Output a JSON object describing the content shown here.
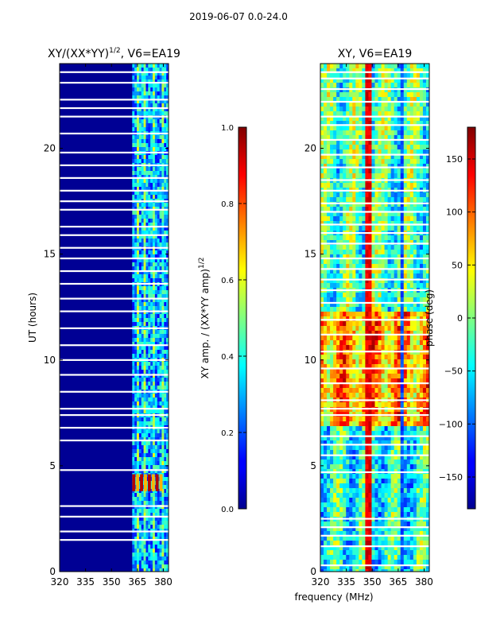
{
  "figure": {
    "suptitle": "2019-06-07 0.0-24.0",
    "xlabel_shared": "frequency (MHz)"
  },
  "chart_data": [
    {
      "type": "heatmap",
      "name": "amplitude-panel",
      "title": "XY/(XX*YY)",
      "title_exponent": "1/2",
      "title_suffix": ", V6=EA19",
      "xlabel": "",
      "ylabel": "UT (hours)",
      "xlim": [
        320,
        383
      ],
      "ylim": [
        0,
        24
      ],
      "xticks": [
        320,
        335,
        350,
        365,
        380
      ],
      "yticks": [
        0,
        5,
        10,
        15,
        20
      ],
      "colormap": "jet",
      "colorbar": {
        "label": "XY amp. / (XX*YY amp)",
        "label_exponent": "1/2",
        "vmin": 0.0,
        "vmax": 1.0,
        "ticks": [
          "0.0",
          "0.2",
          "0.4",
          "0.6",
          "0.8",
          "1.0"
        ]
      },
      "flagged_band_mhz": [
        320,
        362
      ],
      "active_band_mhz": [
        362,
        383
      ],
      "background_value": 0.02,
      "hot_region": {
        "freq_mhz": [
          362,
          380
        ],
        "ut_hours": [
          3.8,
          4.6
        ],
        "value": 0.95
      },
      "flagged_rows_ut": [
        1.5,
        1.9,
        2.6,
        3.1,
        4.8,
        6.2,
        6.8,
        7.4,
        7.7,
        8.5,
        9.3,
        10.0,
        10.7,
        11.5,
        12.3,
        12.9,
        13.6,
        14.2,
        14.8,
        15.3,
        15.9,
        16.3,
        17.1,
        17.5,
        18.0,
        18.6,
        19.2,
        19.8,
        20.7,
        21.5,
        21.9,
        22.3,
        23.1,
        23.6
      ]
    },
    {
      "type": "heatmap",
      "name": "phase-panel",
      "title": "XY, V6=EA19",
      "xlabel": "frequency (MHz)",
      "ylabel": "",
      "xlim": [
        320,
        383
      ],
      "ylim": [
        0,
        24
      ],
      "xticks": [
        320,
        335,
        350,
        365,
        380
      ],
      "yticks": [
        0,
        5,
        10,
        15,
        20
      ],
      "colormap": "jet",
      "colorbar": {
        "label": "phase (deg)",
        "vmin": -180,
        "vmax": 180,
        "ticks": [
          "-150",
          "-100",
          "-50",
          "0",
          "50",
          "100",
          "150"
        ]
      },
      "flagged_rows_ut": [
        0.3,
        1.2,
        1.7,
        2.1,
        2.5,
        4.7,
        5.5,
        6.0,
        6.4,
        7.4,
        7.7,
        8.1,
        8.9,
        9.6,
        10.4,
        11.2,
        11.9,
        12.7,
        13.3,
        13.8,
        14.3,
        14.8,
        15.5,
        16.0,
        16.4,
        17.0,
        17.4,
        18.0,
        18.5,
        19.1,
        19.7,
        20.4,
        21.1,
        21.5,
        22.2,
        22.8,
        23.3,
        23.6
      ]
    }
  ]
}
